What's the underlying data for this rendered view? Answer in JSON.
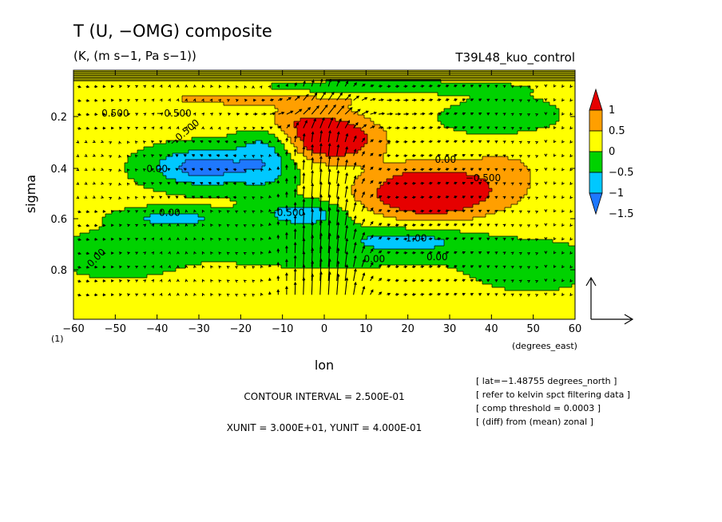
{
  "chart_data": {
    "type": "heatmap",
    "subtype": "filled-contour with vector overlay",
    "title": "T (U, −OMG) composite",
    "subtitle": "(K, (m s−1, Pa s−1))",
    "run_label": "T39L48_kuo_control",
    "xlabel": "lon",
    "xunits": "(degrees_east)",
    "ylabel": "sigma",
    "bottom_level_label": "(1)",
    "xlim": [
      -60,
      60
    ],
    "ylim": [
      1.0,
      0.0
    ],
    "x_ticks": [
      -60,
      -50,
      -40,
      -30,
      -20,
      -10,
      0,
      10,
      20,
      30,
      40,
      50,
      60
    ],
    "y_ticks": [
      0.2,
      0.4,
      0.6,
      0.8
    ],
    "colorbar": {
      "labels": [
        "1",
        "0.5",
        "0",
        "−0.5",
        "−1",
        "−1.5"
      ],
      "levels": [
        -1.5,
        -1.0,
        -0.5,
        0.0,
        0.5,
        1.0
      ],
      "colors": [
        "#1e78ff",
        "#00c8ff",
        "#00d200",
        "#ffff00",
        "#ff9f00",
        "#e60000"
      ]
    },
    "contour_labels": [
      "0.500",
      "0.00",
      "−0.500",
      "1.00"
    ],
    "contour_interval": "CONTOUR INTERVAL = 2.500E-01",
    "vector_units": "XUNIT = 3.000E+01, YUNIT = 4.000E-01",
    "notes": [
      "[ lat=−1.48755 degrees_north ]",
      "[ refer to kelvin spct filtering data ]",
      "[ comp threshold = 0.0003 ]",
      "[ (diff) from (mean) zonal ]"
    ],
    "features": [
      {
        "name": "warm anomaly max",
        "lon": 25,
        "sigma": 0.55,
        "value": 1.0
      },
      {
        "name": "upper warm anomaly",
        "lon": 0,
        "sigma": 0.3,
        "value": 1.0
      },
      {
        "name": "cold anomaly",
        "lon": -30,
        "sigma": 0.4,
        "value": -1.0
      },
      {
        "name": "cold anomaly",
        "lon": -35,
        "sigma": 0.65,
        "value": -0.5
      },
      {
        "name": "strong ascent",
        "lon": 0,
        "sigma": 0.6,
        "value": "upward vectors"
      }
    ]
  }
}
